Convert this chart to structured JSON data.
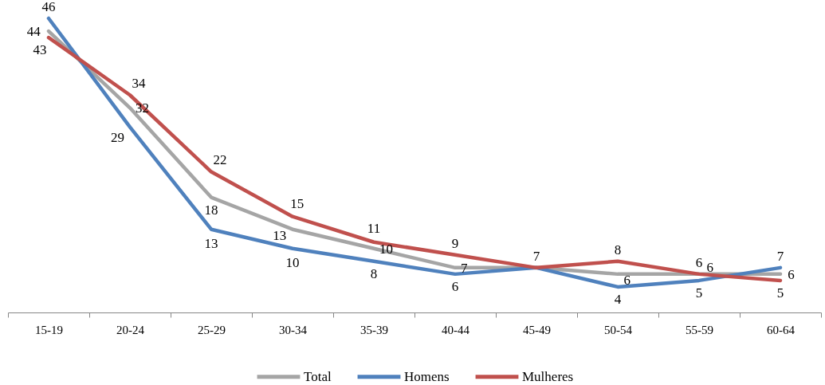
{
  "chart_data": {
    "type": "line",
    "categories": [
      "15-19",
      "20-24",
      "25-29",
      "30-34",
      "35-39",
      "40-44",
      "45-49",
      "50-54",
      "55-59",
      "60-64"
    ],
    "series": [
      {
        "name": "Total",
        "color": "#a5a5a5",
        "values": [
          44,
          32,
          18,
          13,
          10,
          7,
          7,
          6,
          6,
          6
        ],
        "value_labels": [
          "44",
          "32",
          "18",
          "13",
          "10",
          "7",
          null,
          "6",
          "6",
          "6"
        ]
      },
      {
        "name": "Homens",
        "color": "#4f81bd",
        "values": [
          46,
          29,
          13,
          10,
          8,
          6,
          7,
          4,
          5,
          7
        ],
        "value_labels": [
          "46",
          "29",
          "13",
          "10",
          "8",
          "6",
          null,
          "4",
          "5",
          "7"
        ]
      },
      {
        "name": "Mulheres",
        "color": "#c0504d",
        "values": [
          43,
          34,
          22,
          15,
          11,
          9,
          7,
          8,
          6,
          5
        ],
        "value_labels": [
          "43",
          "34",
          "22",
          "15",
          "11",
          "9",
          "7",
          "8",
          "6",
          "5"
        ]
      }
    ],
    "legend": "bottom",
    "tick_labels": "x"
  }
}
